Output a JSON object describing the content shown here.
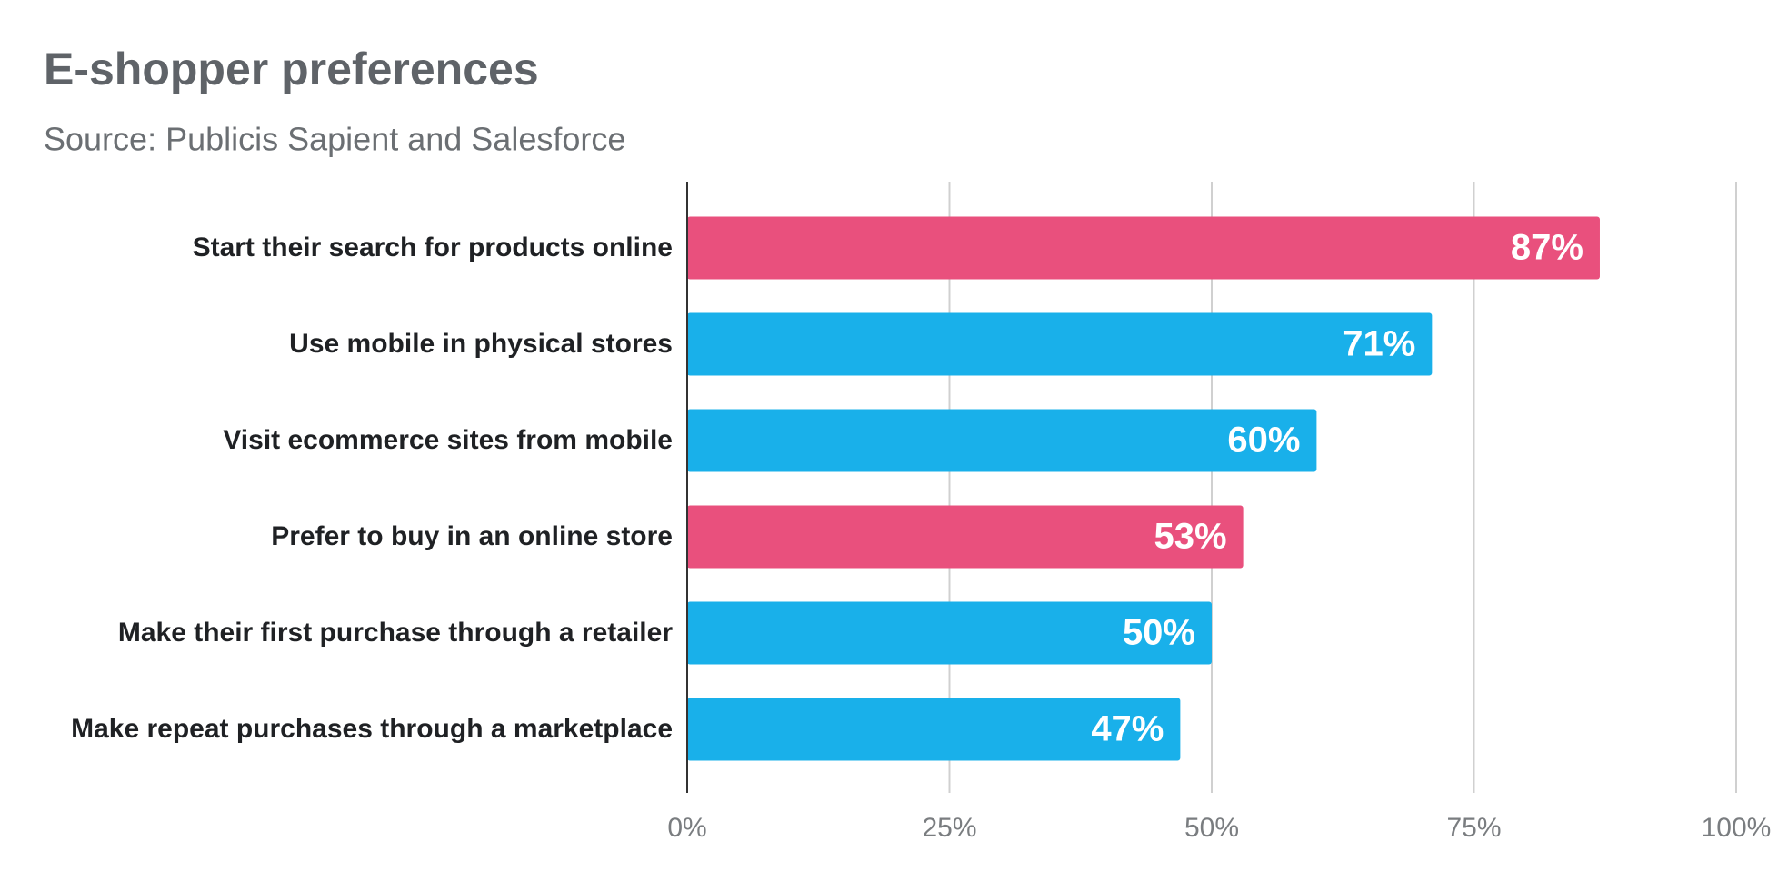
{
  "chart_data": {
    "type": "bar",
    "orientation": "horizontal",
    "title": "E-shopper preferences",
    "subtitle": "Source: Publicis Sapient and Salesforce",
    "categories": [
      "Start their search for products online",
      "Use mobile in physical stores",
      "Visit ecommerce sites from mobile",
      "Prefer to buy in an online store",
      "Make their first purchase through a retailer",
      "Make repeat purchases through a marketplace"
    ],
    "values": [
      87,
      71,
      60,
      53,
      50,
      47
    ],
    "value_labels": [
      "87%",
      "71%",
      "60%",
      "53%",
      "50%",
      "47%"
    ],
    "colors": [
      "#e9507d",
      "#19b0ea",
      "#19b0ea",
      "#e9507d",
      "#19b0ea",
      "#19b0ea"
    ],
    "xlim": [
      0,
      100
    ],
    "xticks": [
      {
        "value": 0,
        "label": "0%"
      },
      {
        "value": 25,
        "label": "25%"
      },
      {
        "value": 50,
        "label": "50%"
      },
      {
        "value": 75,
        "label": "75%"
      },
      {
        "value": 100,
        "label": "100%"
      }
    ],
    "grid": true
  }
}
